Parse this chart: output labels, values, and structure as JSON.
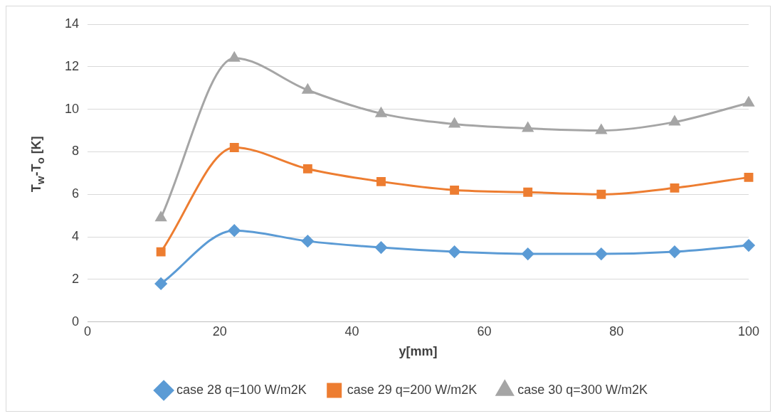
{
  "chart_data": {
    "type": "line",
    "xlabel": "y[mm]",
    "ylabel": "T$_{w}$-T$_{o}$ [K]",
    "x": [
      11.1,
      22.2,
      33.3,
      44.4,
      55.5,
      66.6,
      77.7,
      88.8,
      100
    ],
    "series": [
      {
        "name": "case 28 q=100 W/m2K",
        "color": "#5b9bd5",
        "marker": "diamond",
        "values": [
          1.8,
          4.3,
          3.8,
          3.5,
          3.3,
          3.2,
          3.2,
          3.3,
          3.6
        ]
      },
      {
        "name": "case 29 q=200 W/m2K",
        "color": "#ed7d31",
        "marker": "square",
        "values": [
          3.3,
          8.2,
          7.2,
          6.6,
          6.2,
          6.1,
          6.0,
          6.3,
          6.8
        ]
      },
      {
        "name": "case 30 q=300 W/m2K",
        "color": "#a5a5a5",
        "marker": "triangle",
        "values": [
          4.9,
          12.4,
          10.9,
          9.8,
          9.3,
          9.1,
          9.0,
          9.4,
          10.3
        ]
      }
    ],
    "xlim": [
      0,
      100
    ],
    "xticks": [
      0,
      20,
      40,
      60,
      80,
      100
    ],
    "ylim": [
      0,
      14
    ],
    "yticks": [
      0,
      2,
      4,
      6,
      8,
      10,
      12,
      14
    ],
    "grid": "y",
    "legend": "bottom",
    "line_style": "solid"
  }
}
